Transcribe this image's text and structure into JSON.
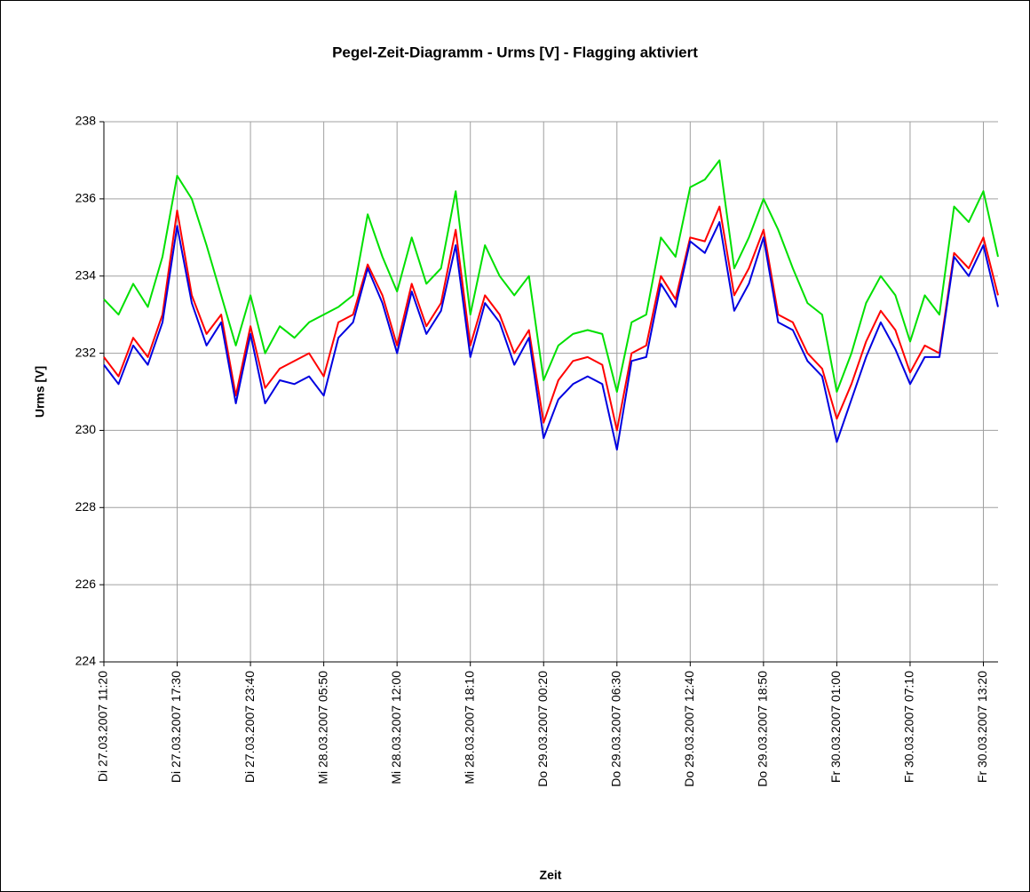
{
  "chart_data": {
    "type": "line",
    "title": "Pegel-Zeit-Diagramm - Urms [V] - Flagging aktiviert",
    "x_label": "Zeit",
    "y_label": "Urms [V]",
    "categories": [
      "Di 27.03.2007 11:20",
      null,
      null,
      null,
      null,
      "Di 27.03.2007 17:30",
      null,
      null,
      null,
      null,
      "Di 27.03.2007 23:40",
      null,
      null,
      null,
      null,
      "Mi 28.03.2007 05:50",
      null,
      null,
      null,
      null,
      "Mi 28.03.2007 12:00",
      null,
      null,
      null,
      null,
      "Mi 28.03.2007 18:10",
      null,
      null,
      null,
      null,
      "Do 29.03.2007 00:20",
      null,
      null,
      null,
      null,
      "Do 29.03.2007 06:30",
      null,
      null,
      null,
      null,
      "Do 29.03.2007 12:40",
      null,
      null,
      null,
      null,
      "Do 29.03.2007 18:50",
      null,
      null,
      null,
      null,
      "Fr 30.03.2007 01:00",
      null,
      null,
      null,
      null,
      "Fr 30.03.2007 07:10",
      null,
      null,
      null,
      null,
      "Fr 30.03.2007 13:20",
      null
    ],
    "series": [
      {
        "color": "#00e000",
        "values": [
          233.4,
          233.0,
          233.8,
          233.2,
          234.5,
          236.6,
          236.0,
          234.8,
          233.5,
          232.2,
          233.5,
          232.0,
          232.7,
          232.4,
          232.8,
          233.0,
          233.2,
          233.5,
          235.6,
          234.5,
          233.6,
          235.0,
          233.8,
          234.2,
          236.2,
          233.0,
          234.8,
          234.0,
          233.5,
          234.0,
          231.3,
          232.2,
          232.5,
          232.6,
          232.5,
          231.0,
          232.8,
          233.0,
          235.0,
          234.5,
          236.3,
          236.5,
          237.0,
          234.2,
          235.0,
          236.0,
          235.2,
          234.2,
          233.3,
          233.0,
          231.0,
          232.0,
          233.3,
          234.0,
          233.5,
          232.3,
          233.5,
          233.0,
          235.8,
          235.4,
          236.2,
          234.5
        ]
      },
      {
        "color": "#ff0000",
        "values": [
          231.9,
          231.4,
          232.4,
          231.9,
          233.0,
          235.7,
          233.5,
          232.5,
          233.0,
          230.9,
          232.7,
          231.1,
          231.6,
          231.8,
          232.0,
          231.4,
          232.8,
          233.0,
          234.3,
          233.5,
          232.2,
          233.8,
          232.7,
          233.3,
          235.2,
          232.2,
          233.5,
          233.0,
          232.0,
          232.6,
          230.2,
          231.3,
          231.8,
          231.9,
          231.7,
          230.0,
          232.0,
          232.2,
          234.0,
          233.4,
          235.0,
          234.9,
          235.8,
          233.5,
          234.2,
          235.2,
          233.0,
          232.8,
          232.0,
          231.6,
          230.3,
          231.2,
          232.3,
          233.1,
          232.6,
          231.5,
          232.2,
          232.0,
          234.6,
          234.2,
          235.0,
          233.5
        ]
      },
      {
        "color": "#0000e0",
        "values": [
          231.7,
          231.2,
          232.2,
          231.7,
          232.8,
          235.3,
          233.3,
          232.2,
          232.8,
          230.7,
          232.5,
          230.7,
          231.3,
          231.2,
          231.4,
          230.9,
          232.4,
          232.8,
          234.2,
          233.3,
          232.0,
          233.6,
          232.5,
          233.1,
          234.8,
          231.9,
          233.3,
          232.8,
          231.7,
          232.4,
          229.8,
          230.8,
          231.2,
          231.4,
          231.2,
          229.5,
          231.8,
          231.9,
          233.8,
          233.2,
          234.9,
          234.6,
          235.4,
          233.1,
          233.8,
          235.0,
          232.8,
          232.6,
          231.8,
          231.4,
          229.7,
          230.8,
          231.9,
          232.8,
          232.1,
          231.2,
          231.9,
          231.9,
          234.5,
          234.0,
          234.8,
          233.2
        ]
      }
    ],
    "ylim": [
      224,
      238
    ],
    "yticks": [
      224,
      226,
      228,
      230,
      232,
      234,
      236,
      238
    ],
    "grid": true
  }
}
